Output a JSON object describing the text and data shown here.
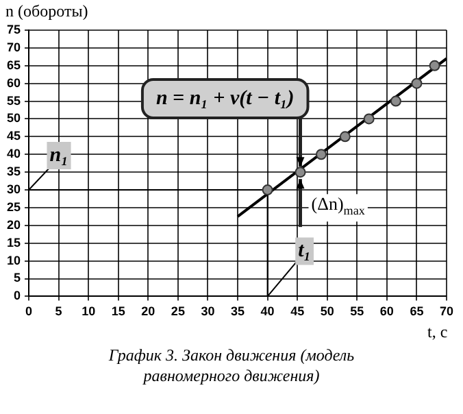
{
  "chart_data": {
    "type": "scatter",
    "title": "График 3. Закон движения (модель равномерного движения)",
    "xlabel": "t, с",
    "ylabel": "n (обороты)",
    "xlim": [
      0,
      70
    ],
    "xticks": [
      0,
      5,
      10,
      15,
      20,
      25,
      30,
      35,
      40,
      45,
      50,
      55,
      60,
      65,
      70
    ],
    "ylim": [
      0,
      75
    ],
    "yticks": [
      0,
      5,
      10,
      15,
      20,
      25,
      30,
      35,
      40,
      45,
      50,
      55,
      60,
      65,
      70,
      75
    ],
    "grid": true,
    "legend": false,
    "series": [
      {
        "color": "#8c8c8c",
        "marker": "circle",
        "x": [
          40,
          45.5,
          49,
          53,
          57,
          61.5,
          65,
          68
        ],
        "values": [
          30,
          35,
          40,
          45,
          50,
          55,
          60,
          65
        ]
      },
      {
        "type": "line",
        "marker": "none",
        "color": "#000000",
        "x": [
          35,
          70
        ],
        "values": [
          22.5,
          67
        ]
      }
    ],
    "ref_lines": [
      {
        "axis": "y",
        "value": 30,
        "label": "n₁"
      },
      {
        "axis": "x",
        "value": 40,
        "label": "t₁"
      }
    ],
    "annotations": [
      {
        "text": "n = n₁ + v(t − t₁)",
        "x": 45.5,
        "y": 35
      },
      {
        "text": "(Δn)$_{max}$",
        "x": 45.5,
        "y": 35
      }
    ]
  }
}
